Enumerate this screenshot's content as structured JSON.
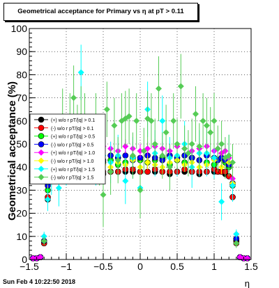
{
  "title": "Geometrical acceptance for Primary vs    η at pT > 0.11",
  "footer_timestamp": "Sun Feb  4 10:22:50 2018",
  "chart_data": {
    "type": "scatter",
    "xlabel": "η",
    "ylabel": "Geometrical acceptance (%)",
    "xlim": [
      -1.5,
      1.5
    ],
    "ylim": [
      0,
      100
    ],
    "x_ticks": [
      -1.5,
      -1,
      -0.5,
      0,
      0.5,
      1,
      1.5
    ],
    "x_tick_labels": [
      "−1.5",
      "−1",
      "−0.5",
      "0",
      "0.5",
      "1",
      "1.5"
    ],
    "y_ticks": [
      0,
      10,
      20,
      30,
      40,
      50,
      60,
      70,
      80,
      90,
      100
    ],
    "y_tick_labels": [
      "0",
      "10",
      "20",
      "30",
      "40",
      "50",
      "60",
      "70",
      "80",
      "90",
      "100"
    ],
    "grid": true,
    "legend_position": "upper-left",
    "series": [
      {
        "name": "(+) w/ r pT/|q| > 0.1",
        "color": "#000000",
        "marker": "circle",
        "legend_text": "(+) w/o r pT/|q| > 0.1",
        "x": [
          -1.45,
          -1.4,
          -1.35,
          -1.3,
          -1.25,
          -1.2,
          -1.15,
          -1.1,
          -1.05,
          -1.0,
          -0.9,
          -0.8,
          -0.7,
          -0.6,
          -0.5,
          -0.4,
          -0.3,
          -0.2,
          -0.1,
          0.0,
          0.1,
          0.2,
          0.3,
          0.4,
          0.5,
          0.6,
          0.7,
          0.8,
          0.9,
          1.0,
          1.05,
          1.1,
          1.15,
          1.2,
          1.25,
          1.3,
          1.35,
          1.4,
          1.45
        ],
        "y": [
          0.5,
          0.5,
          1,
          7,
          26,
          35,
          37,
          38,
          38,
          38,
          38,
          38,
          38,
          38,
          37,
          38,
          38,
          38,
          38,
          38,
          38,
          38,
          38,
          37,
          38,
          38,
          38,
          37,
          38,
          38,
          38,
          38,
          37,
          36,
          27,
          8,
          1,
          0.5,
          0.5
        ],
        "err": [
          0,
          0,
          0.5,
          1,
          1,
          1,
          1,
          1,
          1,
          1,
          1,
          1,
          1,
          1,
          1,
          1,
          1,
          1,
          1,
          1,
          1,
          1,
          1,
          1,
          1,
          1,
          1,
          1,
          1,
          1,
          1,
          1,
          1,
          1,
          1,
          1,
          0.5,
          0,
          0
        ]
      },
      {
        "name": "(-) w/ r pT/|q| > 0.1",
        "color": "#ff0000",
        "marker": "circle",
        "legend_text": "(-) w/o r pT/|q| > 0.1",
        "x": [
          -1.45,
          -1.4,
          -1.35,
          -1.3,
          -1.25,
          -1.2,
          -1.15,
          -1.1,
          -1.05,
          -1.0,
          -0.9,
          -0.8,
          -0.7,
          -0.6,
          -0.5,
          -0.4,
          -0.3,
          -0.2,
          -0.1,
          0.0,
          0.1,
          0.2,
          0.3,
          0.4,
          0.5,
          0.6,
          0.7,
          0.8,
          0.9,
          1.0,
          1.05,
          1.1,
          1.15,
          1.2,
          1.25,
          1.3,
          1.35,
          1.4,
          1.45
        ],
        "y": [
          0.5,
          0.5,
          1,
          7,
          27,
          35,
          37,
          37,
          38,
          38,
          38,
          38,
          38,
          39,
          38,
          38,
          38,
          39,
          39,
          38,
          38,
          39,
          38,
          38,
          38,
          39,
          38,
          38,
          38,
          39,
          38,
          38,
          38,
          36,
          27,
          7,
          1,
          0.5,
          0.5
        ],
        "err": [
          0,
          0,
          0.5,
          1,
          1,
          1,
          1,
          1,
          1,
          1,
          1,
          1,
          1,
          1,
          1,
          1,
          1,
          1,
          1,
          1,
          1,
          1,
          1,
          1,
          1,
          1,
          1,
          1,
          1,
          1,
          1,
          1,
          1,
          1,
          1,
          1,
          0.5,
          0,
          0
        ]
      },
      {
        "name": "(+) w/ r pT/|q| > 0.5",
        "color": "#00ff00",
        "marker": "circle",
        "legend_text": "(+) w/o r pT/|q| > 0.5",
        "x": [
          -1.45,
          -1.4,
          -1.35,
          -1.3,
          -1.25,
          -1.2,
          -1.15,
          -1.1,
          -1.05,
          -1.0,
          -0.9,
          -0.8,
          -0.7,
          -0.6,
          -0.5,
          -0.4,
          -0.3,
          -0.2,
          -0.1,
          0.0,
          0.1,
          0.2,
          0.3,
          0.4,
          0.5,
          0.6,
          0.7,
          0.8,
          0.9,
          1.0,
          1.05,
          1.1,
          1.15,
          1.2,
          1.25,
          1.3,
          1.35,
          1.4,
          1.45
        ],
        "y": [
          0.5,
          0.5,
          1,
          8,
          30,
          38,
          41,
          43,
          42,
          44,
          42,
          41,
          43,
          44,
          42,
          43,
          41,
          42,
          44,
          43,
          42,
          43,
          44,
          41,
          43,
          42,
          44,
          43,
          42,
          41,
          43,
          44,
          42,
          40,
          32,
          9,
          1,
          0.5,
          0.5
        ],
        "err": [
          0,
          0,
          0.5,
          1,
          2,
          2,
          2,
          2,
          2,
          2,
          2,
          2,
          2,
          2,
          2,
          2,
          2,
          2,
          2,
          2,
          2,
          2,
          2,
          2,
          2,
          2,
          2,
          2,
          2,
          2,
          2,
          2,
          2,
          2,
          2,
          1,
          0.5,
          0,
          0
        ]
      },
      {
        "name": "(-) w/ r pT/|q| > 0.5",
        "color": "#0000ff",
        "marker": "circle",
        "legend_text": "(-) w/o r pT/|q| > 0.5",
        "x": [
          -1.45,
          -1.4,
          -1.35,
          -1.3,
          -1.25,
          -1.2,
          -1.15,
          -1.1,
          -1.05,
          -1.0,
          -0.9,
          -0.8,
          -0.7,
          -0.6,
          -0.5,
          -0.4,
          -0.3,
          -0.2,
          -0.1,
          0.0,
          0.1,
          0.2,
          0.3,
          0.4,
          0.5,
          0.6,
          0.7,
          0.8,
          0.9,
          1.0,
          1.05,
          1.1,
          1.15,
          1.2,
          1.25,
          1.3,
          1.35,
          1.4,
          1.45
        ],
        "y": [
          0.5,
          0.5,
          1,
          8,
          32,
          40,
          43,
          45,
          44,
          45,
          43,
          44,
          45,
          44,
          43,
          45,
          44,
          45,
          43,
          44,
          45,
          44,
          43,
          45,
          44,
          45,
          44,
          43,
          45,
          44,
          43,
          44,
          43,
          41,
          33,
          9,
          1,
          0.5,
          0.5
        ],
        "err": [
          0,
          0,
          0.5,
          1,
          2,
          2,
          2,
          2,
          2,
          2,
          2,
          2,
          2,
          2,
          2,
          2,
          2,
          2,
          2,
          2,
          2,
          2,
          2,
          2,
          2,
          2,
          2,
          2,
          2,
          2,
          2,
          2,
          2,
          2,
          2,
          1,
          0.5,
          0,
          0
        ]
      },
      {
        "name": "(+) w/ r pT/|q| > 1.0",
        "color": "#ff00ff",
        "marker": "diamond",
        "legend_text": "(+) w/o r pT/|q| > 1.0",
        "x": [
          -1.45,
          -1.4,
          -1.35,
          -1.3,
          -1.25,
          -1.2,
          -1.15,
          -1.1,
          -1.05,
          -1.0,
          -0.9,
          -0.8,
          -0.7,
          -0.6,
          -0.5,
          -0.4,
          -0.3,
          -0.2,
          -0.1,
          0.0,
          0.1,
          0.2,
          0.3,
          0.4,
          0.5,
          0.6,
          0.7,
          0.8,
          0.9,
          1.0,
          1.05,
          1.1,
          1.15,
          1.2,
          1.25,
          1.3,
          1.35,
          1.4,
          1.45
        ],
        "y": [
          0.5,
          0.5,
          1,
          10,
          35,
          44,
          47,
          48,
          47,
          49,
          48,
          49,
          47,
          48,
          49,
          48,
          47,
          49,
          48,
          47,
          48,
          49,
          48,
          47,
          49,
          48,
          47,
          48,
          49,
          47,
          48,
          46,
          47,
          44,
          35,
          11,
          1,
          0.5,
          0.5
        ],
        "err": [
          0,
          0,
          0.5,
          1,
          3,
          3,
          3,
          3,
          3,
          3,
          3,
          3,
          3,
          3,
          3,
          3,
          3,
          3,
          3,
          3,
          3,
          3,
          3,
          3,
          3,
          3,
          3,
          3,
          3,
          3,
          3,
          3,
          3,
          3,
          3,
          1,
          0.5,
          0,
          0
        ]
      },
      {
        "name": "(-) w/ r pT/|q| > 1.0",
        "color": "#ffff00",
        "marker": "diamond",
        "legend_text": "(-) w/o r pT/|q| > 1.0",
        "x": [
          -1.25,
          -1.2,
          -1.1,
          -1.0,
          -0.9,
          -0.8,
          -0.7,
          -0.6,
          -0.5,
          -0.4,
          -0.3,
          -0.2,
          -0.1,
          0.0,
          0.1,
          0.2,
          0.3,
          0.4,
          0.5,
          0.6,
          0.7,
          0.8,
          0.9,
          1.0,
          1.1,
          1.2,
          1.25
        ],
        "y": [
          34,
          39,
          41,
          40,
          42,
          41,
          40,
          43,
          41,
          40,
          42,
          41,
          43,
          40,
          42,
          41,
          40,
          42,
          43,
          41,
          42,
          40,
          41,
          43,
          40,
          42,
          33
        ],
        "err": [
          3,
          3,
          3,
          3,
          3,
          3,
          3,
          3,
          3,
          3,
          3,
          3,
          3,
          3,
          3,
          3,
          3,
          3,
          3,
          3,
          3,
          3,
          3,
          3,
          3,
          3,
          3
        ]
      },
      {
        "name": "(+) w/ r pT/|q| > 1.5",
        "color": "#00ffff",
        "marker": "diamond",
        "legend_text": "(+) w/o r pT/|q| > 1.5",
        "x": [
          -1.3,
          -1.25,
          -1.2,
          -1.1,
          -1.0,
          -0.9,
          -0.8,
          -0.75,
          -0.7,
          -0.6,
          -0.5,
          -0.4,
          -0.3,
          -0.2,
          -0.1,
          0.0,
          0.1,
          0.2,
          0.3,
          0.4,
          0.5,
          0.6,
          0.7,
          0.8,
          0.9,
          1.0,
          1.1,
          1.2,
          1.25,
          1.3
        ],
        "y": [
          10,
          26,
          34,
          31,
          40,
          46,
          81,
          49,
          46,
          41,
          45,
          42,
          45,
          34,
          44,
          31,
          65,
          46,
          60,
          44,
          45,
          50,
          40,
          46,
          46,
          44,
          25,
          45,
          32,
          11
        ],
        "err": [
          2,
          5,
          6,
          8,
          8,
          10,
          12,
          10,
          10,
          9,
          9,
          9,
          9,
          10,
          9,
          10,
          12,
          10,
          11,
          9,
          9,
          10,
          9,
          10,
          10,
          9,
          8,
          9,
          7,
          2
        ]
      },
      {
        "name": "(-) w/ r pT/|q| > 1.5",
        "color": "#55cc55",
        "marker": "diamond",
        "legend_text": "(-) w/o r pT/|q| > 1.5",
        "x": [
          -1.3,
          -1.25,
          -1.2,
          -1.15,
          -1.1,
          -1.05,
          -1.0,
          -0.95,
          -0.9,
          -0.85,
          -0.8,
          -0.75,
          -0.7,
          -0.65,
          -0.6,
          -0.55,
          -0.5,
          -0.45,
          -0.4,
          -0.35,
          -0.3,
          -0.25,
          -0.2,
          -0.15,
          -0.1,
          -0.05,
          0.0,
          0.05,
          0.1,
          0.15,
          0.2,
          0.25,
          0.3,
          0.35,
          0.4,
          0.45,
          0.5,
          0.55,
          0.6,
          0.65,
          0.7,
          0.75,
          0.8,
          0.85,
          0.9,
          0.95,
          1.0,
          1.05,
          1.1,
          1.15,
          1.2,
          1.25,
          1.3
        ],
        "y": [
          8,
          40,
          42,
          45,
          50,
          62,
          48,
          60,
          70,
          55,
          62,
          60,
          45,
          52,
          60,
          42,
          28,
          65,
          38,
          58,
          43,
          60,
          61,
          62,
          45,
          60,
          30,
          47,
          61,
          60,
          50,
          74,
          45,
          55,
          40,
          60,
          50,
          75,
          48,
          46,
          50,
          63,
          49,
          60,
          58,
          55,
          60,
          48,
          50,
          44,
          45,
          42,
          7
        ],
        "err": [
          2,
          8,
          8,
          9,
          10,
          12,
          10,
          12,
          14,
          12,
          13,
          12,
          10,
          11,
          12,
          10,
          14,
          12,
          10,
          12,
          10,
          12,
          12,
          12,
          10,
          12,
          12,
          10,
          12,
          12,
          11,
          14,
          10,
          12,
          10,
          12,
          11,
          14,
          10,
          10,
          11,
          12,
          10,
          12,
          12,
          11,
          12,
          10,
          10,
          9,
          9,
          8,
          2
        ]
      }
    ]
  }
}
